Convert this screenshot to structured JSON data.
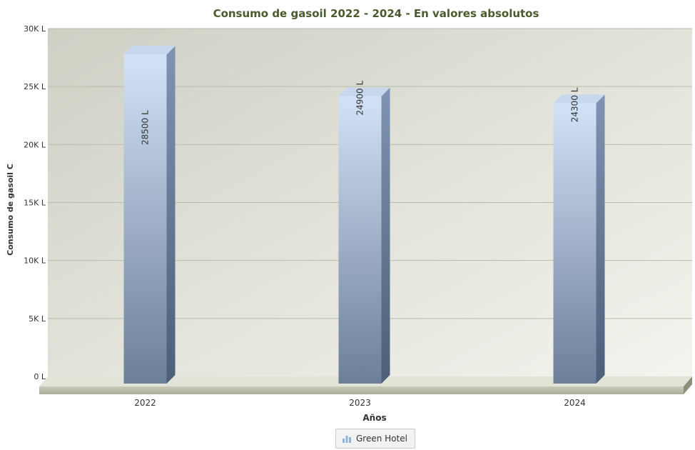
{
  "chart_data": {
    "type": "bar",
    "title": "Consumo de gasoil 2022 - 2024 - En valores absolutos",
    "xlabel": "Años",
    "ylabel": "Consumo de gasoil C",
    "categories": [
      "2022",
      "2023",
      "2024"
    ],
    "series": [
      {
        "name": "Green Hotel",
        "values": [
          28500,
          24900,
          24300
        ],
        "color": "#9fb8d6"
      }
    ],
    "data_labels": [
      "28500 L",
      "24900 L",
      "24300 L"
    ],
    "ylim": [
      0,
      30000
    ],
    "yticks": [
      {
        "value": 0,
        "label": "0 L"
      },
      {
        "value": 5000,
        "label": "5K L"
      },
      {
        "value": 10000,
        "label": "10K L"
      },
      {
        "value": 15000,
        "label": "15K L"
      },
      {
        "value": 20000,
        "label": "20K L"
      },
      {
        "value": 25000,
        "label": "25K L"
      },
      {
        "value": 30000,
        "label": "30K L"
      }
    ],
    "grid": true,
    "legend": "bottom-center",
    "style": "3d"
  },
  "colors": {
    "title": "#4a5a2c",
    "axis_text": "#333333",
    "grid": "#b9bca8",
    "plot_bg_light": "#f4f4ee",
    "plot_bg_dark": "#cfd0c4",
    "floor": "#a9ac98",
    "bar_top": "#d2e2f7",
    "bar_bottom": "#6c7f99",
    "bar_side": "#4c5e78"
  }
}
